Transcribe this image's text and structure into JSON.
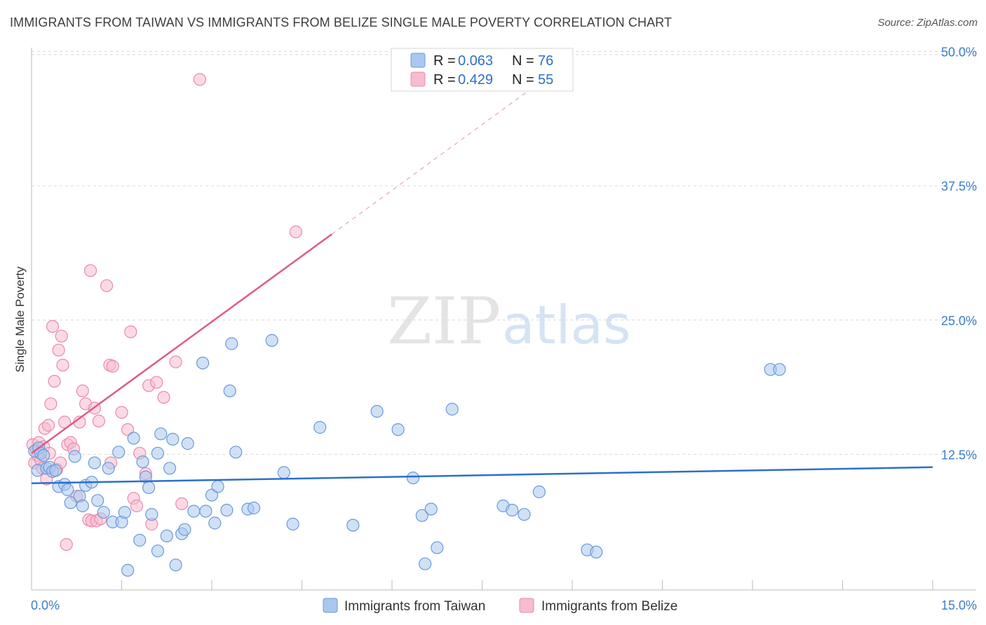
{
  "title": "IMMIGRANTS FROM TAIWAN VS IMMIGRANTS FROM BELIZE SINGLE MALE POVERTY CORRELATION CHART",
  "source": "Source: ZipAtlas.com",
  "watermark": {
    "zip": "ZIP",
    "atlas": "atlas"
  },
  "colors": {
    "taiwan_fill": "#a9c8ef",
    "taiwan_stroke": "#6a9ad8",
    "taiwan_line": "#2c6fcc",
    "belize_fill": "#f7bcd0",
    "belize_stroke": "#ea8aaa",
    "belize_line": "#e05a86",
    "grid": "#d9d9d9",
    "tick_text": "#3d7cc9"
  },
  "legend": {
    "taiwan": {
      "r_label": "R =",
      "r_value": "0.063",
      "n_label": "N =",
      "n_value": "76"
    },
    "belize": {
      "r_label": "R =",
      "r_value": "0.429",
      "n_label": "N =",
      "n_value": "55"
    }
  },
  "chart_data": {
    "type": "scatter",
    "title": "IMMIGRANTS FROM TAIWAN VS IMMIGRANTS FROM BELIZE SINGLE MALE POVERTY CORRELATION CHART",
    "xlabel": "",
    "ylabel": "Single Male Poverty",
    "xlim": [
      0,
      15
    ],
    "ylim": [
      0,
      52
    ],
    "x_tick_labels": [
      "0.0%",
      "15.0%"
    ],
    "y_ticks": [
      12.5,
      25.0,
      37.5,
      50.0
    ],
    "y_tick_labels": [
      "12.5%",
      "25.0%",
      "37.5%",
      "50.0%"
    ],
    "grid": true,
    "legend_position": "top-center",
    "series": [
      {
        "name": "Immigrants from Taiwan",
        "color": "#a9c8ef",
        "R": 0.063,
        "N": 76,
        "trend": {
          "x0": 0.0,
          "y0": 9.8,
          "x1": 15.0,
          "y1": 11.3,
          "dashed_until": null
        },
        "points": [
          [
            0.05,
            12.8
          ],
          [
            0.1,
            11.0
          ],
          [
            0.12,
            13.1
          ],
          [
            0.15,
            12.6
          ],
          [
            0.2,
            12.4
          ],
          [
            0.25,
            11.2
          ],
          [
            0.3,
            11.3
          ],
          [
            0.35,
            10.9
          ],
          [
            0.4,
            11.0
          ],
          [
            0.45,
            9.5
          ],
          [
            0.55,
            9.7
          ],
          [
            0.6,
            9.2
          ],
          [
            0.65,
            8.0
          ],
          [
            0.72,
            12.3
          ],
          [
            0.8,
            8.6
          ],
          [
            0.85,
            7.7
          ],
          [
            0.9,
            9.6
          ],
          [
            1.0,
            9.9
          ],
          [
            1.05,
            11.7
          ],
          [
            1.1,
            8.2
          ],
          [
            1.2,
            7.1
          ],
          [
            1.28,
            11.2
          ],
          [
            1.35,
            6.2
          ],
          [
            1.45,
            12.7
          ],
          [
            1.5,
            6.2
          ],
          [
            1.55,
            7.1
          ],
          [
            1.6,
            1.7
          ],
          [
            1.7,
            14.0
          ],
          [
            1.8,
            4.5
          ],
          [
            1.85,
            11.8
          ],
          [
            1.9,
            10.4
          ],
          [
            1.95,
            9.4
          ],
          [
            2.0,
            6.9
          ],
          [
            2.1,
            12.6
          ],
          [
            2.1,
            3.5
          ],
          [
            2.15,
            14.4
          ],
          [
            2.25,
            4.9
          ],
          [
            2.3,
            11.2
          ],
          [
            2.35,
            13.9
          ],
          [
            2.4,
            2.2
          ],
          [
            2.5,
            5.1
          ],
          [
            2.55,
            5.5
          ],
          [
            2.6,
            13.5
          ],
          [
            2.7,
            7.2
          ],
          [
            2.85,
            21.0
          ],
          [
            2.9,
            7.2
          ],
          [
            3.0,
            8.7
          ],
          [
            3.05,
            6.1
          ],
          [
            3.1,
            9.5
          ],
          [
            3.25,
            7.3
          ],
          [
            3.3,
            18.4
          ],
          [
            3.33,
            22.8
          ],
          [
            3.4,
            12.7
          ],
          [
            3.6,
            7.4
          ],
          [
            3.7,
            7.5
          ],
          [
            4.0,
            23.1
          ],
          [
            4.2,
            10.8
          ],
          [
            4.35,
            6.0
          ],
          [
            4.8,
            15.0
          ],
          [
            5.35,
            5.9
          ],
          [
            5.75,
            16.5
          ],
          [
            6.1,
            14.8
          ],
          [
            6.35,
            10.3
          ],
          [
            6.5,
            6.8
          ],
          [
            6.55,
            2.3
          ],
          [
            6.65,
            7.4
          ],
          [
            6.75,
            3.8
          ],
          [
            7.0,
            16.7
          ],
          [
            7.85,
            7.7
          ],
          [
            8.0,
            7.3
          ],
          [
            8.2,
            6.9
          ],
          [
            8.45,
            9.0
          ],
          [
            9.25,
            3.6
          ],
          [
            9.4,
            3.4
          ],
          [
            12.3,
            20.4
          ],
          [
            12.45,
            20.4
          ]
        ]
      },
      {
        "name": "Immigrants from Belize",
        "color": "#f7bcd0",
        "R": 0.429,
        "N": 55,
        "trend": {
          "x0": 0.0,
          "y0": 12.6,
          "x1": 5.0,
          "y1": 33.0,
          "dashed_until": 9.0
        },
        "points": [
          [
            0.02,
            13.4
          ],
          [
            0.05,
            11.7
          ],
          [
            0.08,
            12.9
          ],
          [
            0.1,
            12.4
          ],
          [
            0.12,
            13.6
          ],
          [
            0.15,
            12.0
          ],
          [
            0.18,
            11.2
          ],
          [
            0.2,
            13.2
          ],
          [
            0.22,
            14.9
          ],
          [
            0.25,
            10.2
          ],
          [
            0.28,
            15.2
          ],
          [
            0.3,
            12.6
          ],
          [
            0.32,
            17.2
          ],
          [
            0.35,
            24.4
          ],
          [
            0.38,
            19.3
          ],
          [
            0.42,
            11.1
          ],
          [
            0.45,
            22.2
          ],
          [
            0.48,
            11.7
          ],
          [
            0.5,
            23.5
          ],
          [
            0.52,
            20.8
          ],
          [
            0.55,
            15.5
          ],
          [
            0.58,
            4.1
          ],
          [
            0.6,
            13.4
          ],
          [
            0.65,
            13.6
          ],
          [
            0.7,
            13.0
          ],
          [
            0.75,
            8.6
          ],
          [
            0.8,
            15.5
          ],
          [
            0.85,
            18.4
          ],
          [
            0.9,
            17.2
          ],
          [
            0.95,
            6.4
          ],
          [
            0.98,
            29.6
          ],
          [
            1.0,
            6.3
          ],
          [
            1.05,
            16.8
          ],
          [
            1.08,
            6.3
          ],
          [
            1.12,
            15.6
          ],
          [
            1.15,
            6.5
          ],
          [
            1.25,
            28.2
          ],
          [
            1.3,
            20.8
          ],
          [
            1.32,
            11.7
          ],
          [
            1.35,
            20.7
          ],
          [
            1.5,
            16.4
          ],
          [
            1.6,
            14.8
          ],
          [
            1.65,
            23.9
          ],
          [
            1.7,
            8.4
          ],
          [
            1.75,
            7.7
          ],
          [
            1.8,
            12.6
          ],
          [
            1.9,
            10.7
          ],
          [
            1.95,
            18.9
          ],
          [
            2.0,
            6.0
          ],
          [
            2.08,
            19.2
          ],
          [
            2.2,
            17.8
          ],
          [
            2.4,
            21.1
          ],
          [
            2.5,
            7.9
          ],
          [
            2.8,
            47.4
          ],
          [
            4.4,
            33.2
          ]
        ]
      }
    ]
  },
  "bottom_legend": [
    "Immigrants from Taiwan",
    "Immigrants from Belize"
  ]
}
